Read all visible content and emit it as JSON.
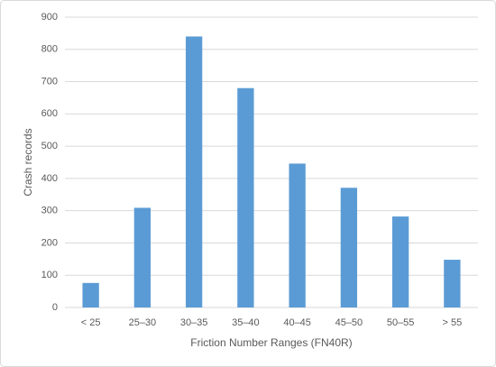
{
  "chart_data": {
    "type": "bar",
    "x_label": "Friction Number Ranges (FN40R)",
    "y_label": "Crash records",
    "categories": [
      "< 25",
      "25–30",
      "30–35",
      "35–40",
      "40–45",
      "45–50",
      "50–55",
      "> 55"
    ],
    "values": [
      76,
      309,
      840,
      680,
      446,
      371,
      282,
      148
    ],
    "color": "#5b9bd5",
    "ylim": [
      0,
      900
    ],
    "yticks": [
      0,
      100,
      200,
      300,
      400,
      500,
      600,
      700,
      800,
      900
    ],
    "grid": true
  }
}
